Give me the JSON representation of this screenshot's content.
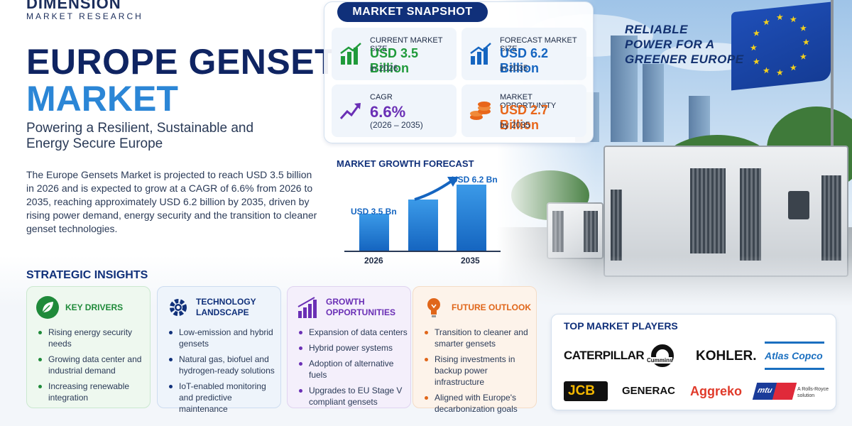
{
  "brand": {
    "name": "DIMENSION",
    "sub": "MARKET RESEARCH"
  },
  "title": {
    "line1": "EUROPE GENSETS",
    "line2": "MARKET"
  },
  "subtitle": "Powering a Resilient, Sustainable and Energy Secure Europe",
  "description": "The Europe Gensets Market is projected to reach USD 3.5 billion in 2026 and is expected to grow at a CAGR of 6.6% from 2026 to 2035, reaching approximately USD 6.2 billion by 2035, driven by rising power demand, energy security and the transition to cleaner genset technologies.",
  "tagline": [
    "RELIABLE",
    "POWER FOR A",
    "GREENER EUROPE"
  ],
  "snapshot": {
    "title": "MARKET SNAPSHOT",
    "cards": [
      {
        "label": "CURRENT MARKET SIZE",
        "value": "USD 3.5 Billion",
        "note": "in 2026",
        "color": "#1f9a3a",
        "icon": "bar-chart-green-icon"
      },
      {
        "label": "FORECAST MARKET SIZE",
        "value": "USD 6.2 Billion",
        "note": "in 2035",
        "color": "#1565c0",
        "icon": "bar-chart-blue-icon"
      },
      {
        "label": "CAGR",
        "value": "6.6%",
        "note": "(2026 – 2035)",
        "color": "#6a2fb5",
        "icon": "trend-up-icon"
      },
      {
        "label": "MARKET OPPORTUNITY",
        "value": "USD 2.7 Billion",
        "note": "by 2035",
        "color": "#e8661a",
        "icon": "coins-icon"
      }
    ]
  },
  "growth": {
    "title": "MARKET GROWTH FORECAST",
    "start_label": "USD 3.5 Bn",
    "end_label": "USD 6.2 Bn",
    "years": [
      "2026",
      "2035"
    ]
  },
  "chart_data": {
    "type": "bar",
    "categories": [
      "2026",
      "",
      "2035"
    ],
    "values": [
      3.5,
      4.8,
      6.2
    ],
    "title": "MARKET GROWTH FORECAST",
    "ylim": [
      0,
      7
    ]
  },
  "insights": {
    "title": "STRATEGIC INSIGHTS",
    "cards": [
      {
        "head": [
          "KEY DRIVERS"
        ],
        "color": "#1f8a3a",
        "bg": "#eef8ef",
        "border": "#cbe8cf",
        "icon": "leaf-icon",
        "items": [
          "Rising energy security needs",
          "Growing data center and industrial demand",
          "Increasing renewable integration"
        ]
      },
      {
        "head": [
          "TECHNOLOGY",
          "LANDSCAPE"
        ],
        "color": "#10307a",
        "bg": "#eef4fb",
        "border": "#cddcf0",
        "icon": "gear-icon",
        "items": [
          "Low-emission and hybrid gensets",
          "Natural gas, biofuel and hydrogen-ready solutions",
          "IoT-enabled monitoring and predictive maintenance"
        ]
      },
      {
        "head": [
          "GROWTH",
          "OPPORTUNITIES"
        ],
        "color": "#6a2fb5",
        "bg": "#f4effb",
        "border": "#e0d3f0",
        "icon": "growth-bars-icon",
        "items": [
          "Expansion of data centers",
          "Hybrid power systems",
          "Adoption of alternative fuels",
          "Upgrades to EU Stage V compliant gensets"
        ]
      },
      {
        "head": [
          "FUTURE OUTLOOK"
        ],
        "color": "#e0661a",
        "bg": "#fdf3ea",
        "border": "#f4dcc6",
        "icon": "lightbulb-icon",
        "items": [
          "Transition to cleaner and smarter gensets",
          "Rising investments in backup power infrastructure",
          "Aligned with Europe's decarbonization goals"
        ]
      }
    ]
  },
  "players": {
    "title": "TOP MARKET PLAYERS",
    "logos": [
      "CATERPILLAR",
      "Cummins",
      "KOHLER.",
      "Atlas Copco",
      "JCB",
      "GENERAC",
      "Aggreko",
      "mtu",
      "A Rolls-Royce solution"
    ]
  }
}
